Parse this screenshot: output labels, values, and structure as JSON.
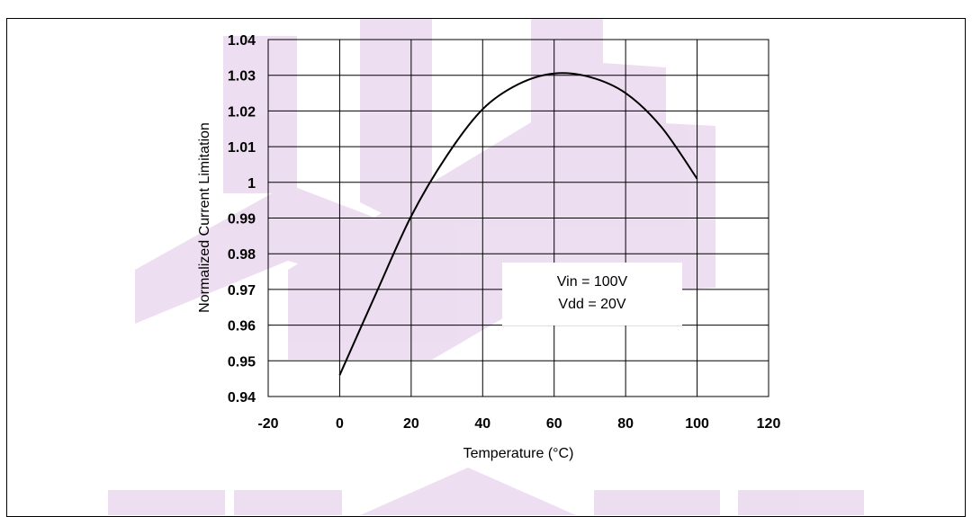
{
  "header": {
    "cropped_text": ""
  },
  "chart_data": {
    "type": "line",
    "title": "",
    "xlabel": "Temperature (°C)",
    "ylabel": "Normalized Current Limitation",
    "xlim": [
      -20,
      120
    ],
    "ylim": [
      0.94,
      1.04
    ],
    "x_ticks": [
      "-20",
      "0",
      "20",
      "40",
      "60",
      "80",
      "100",
      "120"
    ],
    "y_ticks": [
      "1.04",
      "1.03",
      "1.02",
      "1.01",
      "1",
      "0.99",
      "0.98",
      "0.97",
      "0.96",
      "0.95",
      "0.94"
    ],
    "grid": true,
    "series": [
      {
        "color": "#000000",
        "x": [
          0,
          10,
          20,
          30,
          40,
          50,
          60,
          70,
          80,
          90,
          100
        ],
        "y": [
          0.946,
          0.9685,
          0.9905,
          1.0075,
          1.0205,
          1.0275,
          1.0305,
          1.0295,
          1.025,
          1.0155,
          1.001
        ]
      }
    ],
    "annotation": {
      "line1": "Vin = 100V",
      "line2": "Vdd = 20V"
    }
  }
}
